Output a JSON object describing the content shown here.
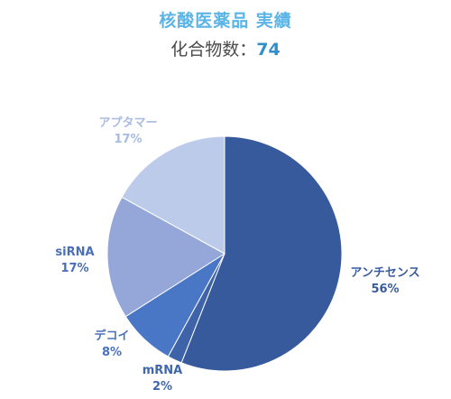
{
  "chart_data": {
    "type": "pie",
    "title": "核酸医薬品 実績",
    "subtitle_prefix": "化合物数：",
    "subtitle_value": "74",
    "start_angle_deg": 0,
    "slices": [
      {
        "name": "アンチセンス",
        "value": 56,
        "pct_label": "56%",
        "color": "#365a9b",
        "label_color": "#3a5c9f"
      },
      {
        "name": "mRNA",
        "value": 2,
        "pct_label": "2%",
        "color": "#3e63a8",
        "label_color": "#4066ab"
      },
      {
        "name": "デコイ",
        "value": 8,
        "pct_label": "8%",
        "color": "#4a76c6",
        "label_color": "#4a72bc"
      },
      {
        "name": "siRNA",
        "value": 17,
        "pct_label": "17%",
        "color": "#95a7d8",
        "label_color": "#4a6eb8"
      },
      {
        "name": "アプタマー",
        "value": 17,
        "pct_label": "17%",
        "color": "#bccbe9",
        "label_color": "#a9bbe2"
      }
    ]
  }
}
